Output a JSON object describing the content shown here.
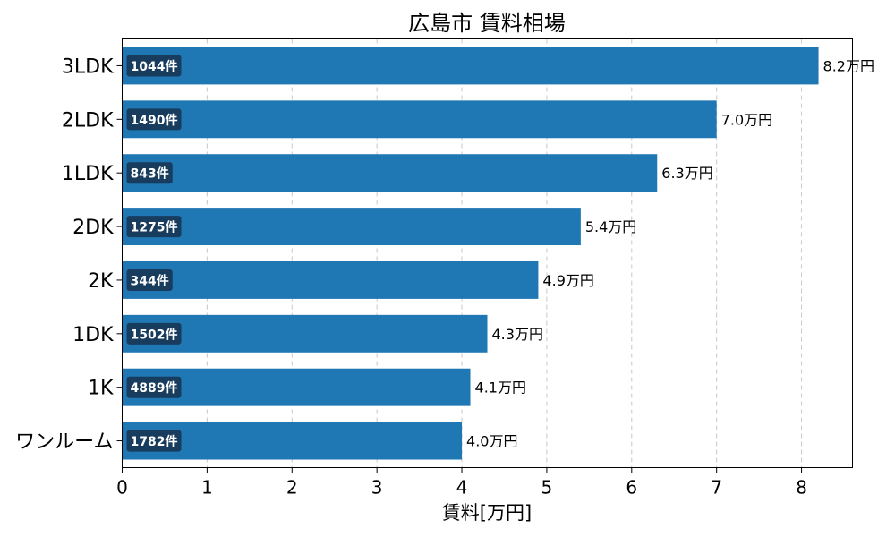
{
  "chart_data": {
    "type": "bar",
    "orientation": "horizontal",
    "title": "広島市 賃料相場",
    "xlabel": "賃料[万円]",
    "ylabel": "",
    "xlim": [
      0,
      8.6
    ],
    "xticks": [
      0,
      1,
      2,
      3,
      4,
      5,
      6,
      7,
      8
    ],
    "grid": "x-dashed",
    "bar_color": "#1f77b4",
    "badge_color": "#173c5e",
    "categories": [
      "3LDK",
      "2LDK",
      "1LDK",
      "2DK",
      "2K",
      "1DK",
      "1K",
      "ワンルーム"
    ],
    "values": [
      8.2,
      7.0,
      6.3,
      5.4,
      4.9,
      4.3,
      4.1,
      4.0
    ],
    "value_labels": [
      "8.2万円",
      "7.0万円",
      "6.3万円",
      "5.4万円",
      "4.9万円",
      "4.3万円",
      "4.1万円",
      "4.0万円"
    ],
    "count_labels": [
      "1044件",
      "1490件",
      "843件",
      "1275件",
      "344件",
      "1502件",
      "4889件",
      "1782件"
    ]
  }
}
